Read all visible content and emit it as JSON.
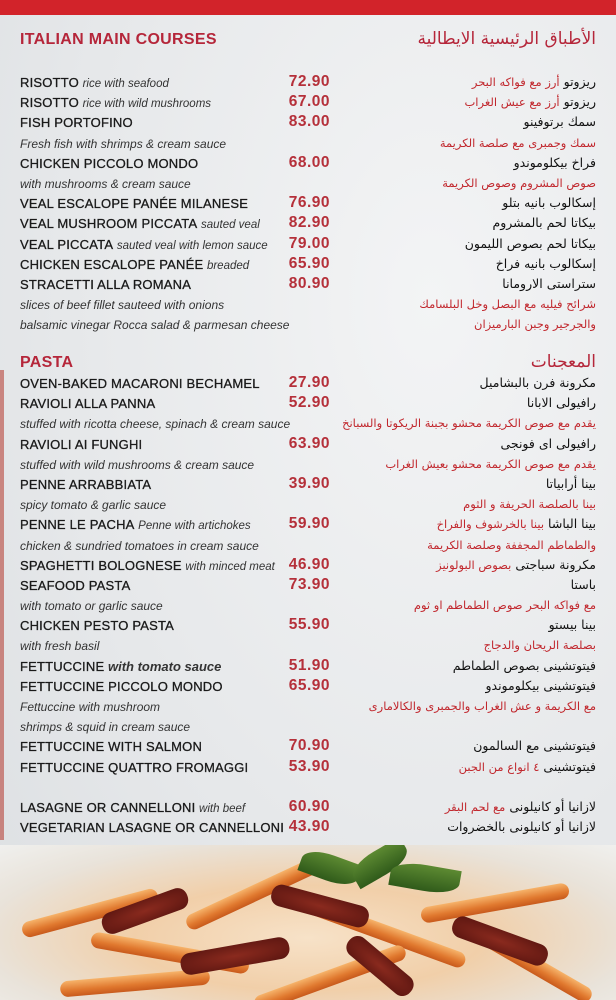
{
  "colors": {
    "accent": "#b5263a",
    "band": "#d2232a",
    "price": "#b5303a"
  },
  "main": {
    "title": "ITALIAN MAIN COURSES",
    "title_ar": "الأطباق الرئيسية الايطالية",
    "rows": [
      {
        "name": "RISOTTO",
        "desc": "rice with seafood",
        "price": "72.90",
        "ar_name": "ريزوتو",
        "ar_desc": "أرز مع فواكه البحر"
      },
      {
        "name": "RISOTTO",
        "desc": "rice with wild mushrooms",
        "price": "67.00",
        "ar_name": "ريزوتو",
        "ar_desc": "أرز مع عيش الغراب"
      },
      {
        "name": "FISH PORTOFINO",
        "price": "83.00",
        "ar_name": "سمك برتوفينو"
      },
      {
        "desc": "Fresh fish with shrimps & cream sauce",
        "ar_desc": "سمك وجمبرى مع صلصة الكريمة"
      },
      {
        "name": "CHICKEN PICCOLO MONDO",
        "price": "68.00",
        "ar_name": "فراخ بيكلوموندو"
      },
      {
        "desc": "with mushrooms & cream sauce",
        "ar_desc": "صوص المشروم وصوص الكريمة"
      },
      {
        "name": "VEAL ESCALOPE PANÉE MILANESE",
        "price": "76.90",
        "ar_name": "إسكالوب بانيه بتلو"
      },
      {
        "name": "VEAL MUSHROOM PICCATA",
        "desc": "sauted veal",
        "price": "82.90",
        "ar_name": "بيكاتا لحم بالمشروم"
      },
      {
        "name": "VEAL PICCATA",
        "desc": "sauted veal with lemon sauce",
        "price": "79.00",
        "ar_name": "بيكاتا لحم بصوص الليمون"
      },
      {
        "name": "CHICKEN ESCALOPE PANÉE",
        "desc": "breaded",
        "price": "65.90",
        "ar_name": "إسكالوب بانيه فراخ"
      },
      {
        "name": "STRACETTI ALLA ROMANA",
        "price": "80.90",
        "ar_name": "ستراستى الارومانا"
      },
      {
        "desc": "slices of beef fillet sauteed with onions",
        "ar_desc": "شرائح فيليه مع البصل وخل البلسامك"
      },
      {
        "desc": "balsamic vinegar Rocca salad & parmesan cheese",
        "ar_desc": "والجرجير وجبن البارميزان"
      }
    ]
  },
  "pasta": {
    "title": "PASTA",
    "title_ar": "المعجنات",
    "rows": [
      {
        "name": "OVEN-BAKED MACARONI BECHAMEL",
        "price": "27.90",
        "ar_name": "مكرونة فرن بالبشاميل"
      },
      {
        "name": "RAVIOLI ALLA PANNA",
        "price": "52.90",
        "ar_name": "رافيولى الابانا"
      },
      {
        "desc": "stuffed with ricotta cheese, spinach & cream sauce",
        "ar_desc": "يقدم مع صوص الكريمة محشو بجبنة الريكوتا والسبانخ"
      },
      {
        "name": "RAVIOLI AI FUNGHI",
        "price": "63.90",
        "ar_name": "رافيولى اى فونجى"
      },
      {
        "desc": "stuffed with wild mushrooms & cream sauce",
        "ar_desc": "يقدم مع صوص الكريمة محشو بعيش الغراب"
      },
      {
        "name": "PENNE ARRABBIATA",
        "price": "39.90",
        "ar_name": "بينا أرابياتا"
      },
      {
        "desc": "spicy tomato & garlic sauce",
        "ar_desc": "بينا بالصلصة الحريفة و الثوم"
      },
      {
        "name": "PENNE LE PACHA",
        "desc": "Penne with artichokes",
        "price": "59.90",
        "ar_name": "بينا الباشا",
        "ar_desc": "بينا بالخرشوف والفراخ"
      },
      {
        "desc": "chicken & sundried tomatoes in cream sauce",
        "ar_desc": "والطماطم المجففة وصلصة الكريمة"
      },
      {
        "name": "SPAGHETTI BOLOGNESE",
        "desc": "with minced meat",
        "price": "46.90",
        "ar_name": "مكرونة سباجتى",
        "ar_desc": "بصوص البولونيز"
      },
      {
        "name": "SEAFOOD PASTA",
        "price": "73.90",
        "ar_name": "باستا"
      },
      {
        "desc": "with tomato or garlic sauce",
        "ar_desc": "مع فواكه البحر  صوص الطماطم او ثوم"
      },
      {
        "name": "CHICKEN PESTO PASTA",
        "price": "55.90",
        "ar_name": "بينا بيستو"
      },
      {
        "desc": "with fresh basil",
        "ar_desc": "بصلصة الريحان والدجاج"
      },
      {
        "name": "FETTUCCINE",
        "desc": "with tomato sauce",
        "desc_bold": true,
        "price": "51.90",
        "ar_name": "فيتوتشينى بصوص الطماطم"
      },
      {
        "name": "FETTUCCINE PICCOLO MONDO",
        "price": "65.90",
        "ar_name": "فيتوتشينى بيكلوموندو"
      },
      {
        "desc": "Fettuccine with mushroom",
        "ar_desc": "مع الكريمة و عش الغراب والجمبرى والكالامارى"
      },
      {
        "desc": " shrimps & squid in cream sauce"
      },
      {
        "name": "FETTUCCINE WITH SALMON",
        "price": "70.90",
        "ar_name": "فيتوتشينى مع السالمون"
      },
      {
        "name": "FETTUCCINE QUATTRO FROMAGGI",
        "price": "53.90",
        "ar_name": "فيتوتشينى",
        "ar_desc": "٤ انواع من الجبن"
      },
      {},
      {
        "name": "LASAGNE OR CANNELLONI",
        "desc": "with beef",
        "price": "60.90",
        "ar_name": "لازانيا  أو كانيلونى",
        "ar_desc": "مع لحم البقر"
      },
      {
        "name": "VEGETARIAN LASAGNE OR CANNELLONI",
        "price": "43.90",
        "ar_name": "لازانيا أو كانيلونى بالخضروات"
      }
    ]
  },
  "photo": {
    "subject": "penne-with-sundried-tomatoes-and-basil"
  }
}
